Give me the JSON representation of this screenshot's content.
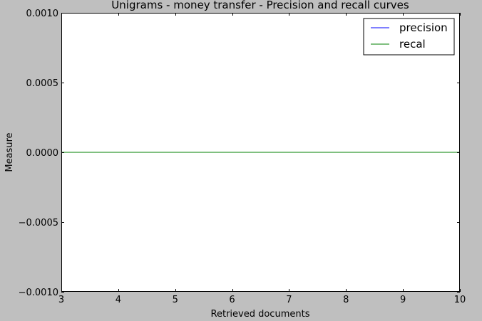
{
  "chart_data": {
    "type": "line",
    "title": "Unigrams - money transfer - Precision and recall curves",
    "xlabel": "Retrieved documents",
    "ylabel": "Measure",
    "xlim": [
      3,
      10
    ],
    "ylim": [
      -0.001,
      0.001
    ],
    "x_ticks": [
      3,
      4,
      5,
      6,
      7,
      8,
      9,
      10
    ],
    "x_tick_labels": [
      "3",
      "4",
      "5",
      "6",
      "7",
      "8",
      "9",
      "10"
    ],
    "y_ticks": [
      0.001,
      0.0005,
      0,
      -0.0005,
      -0.001
    ],
    "y_tick_labels": [
      "0.0010",
      "0.0005",
      "0.0000",
      "−0.0005",
      "−0.0010"
    ],
    "grid": false,
    "legend_position": "top-right",
    "series": [
      {
        "name": "precision",
        "color": "#0000ff",
        "x": [
          3,
          4,
          5,
          6,
          7,
          8,
          9,
          10
        ],
        "values": [
          0,
          0,
          0,
          0,
          0,
          0,
          0,
          0
        ]
      },
      {
        "name": "recal",
        "color": "#008000",
        "x": [
          3,
          4,
          5,
          6,
          7,
          8,
          9,
          10
        ],
        "values": [
          0,
          0,
          0,
          0,
          0,
          0,
          0,
          0
        ]
      }
    ]
  },
  "colors": {
    "figure_background": "#bfbfbf",
    "plot_background": "#ffffff",
    "axes": "#000000"
  }
}
